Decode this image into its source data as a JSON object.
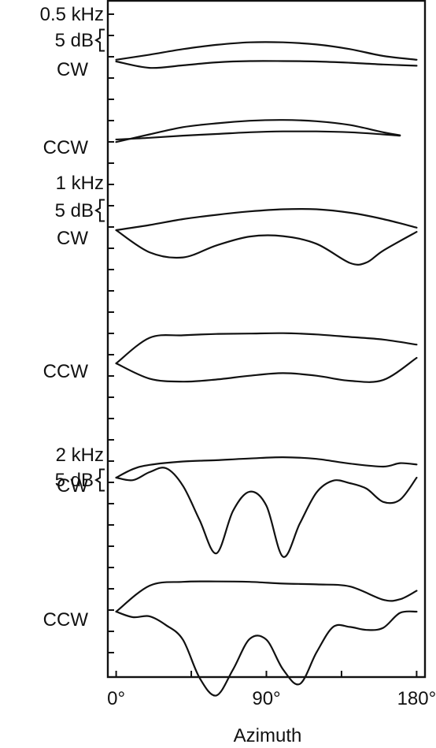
{
  "chart_data": {
    "type": "line",
    "xlabel": "Azimuth",
    "x_tick_labels": [
      "0°",
      "90°",
      "180°"
    ],
    "x_ticks": [
      0,
      90,
      180
    ],
    "xlim": [
      -5,
      185
    ],
    "scale_label": "5 dB",
    "scale_db": 5,
    "grid": false,
    "panels": [
      {
        "frequency": "0.5 kHz",
        "groups": [
          {
            "label": "CW",
            "traces": [
              {
                "x": [
                  0,
                  20,
                  40,
                  60,
                  80,
                  100,
                  120,
                  140,
                  160,
                  180
                ],
                "y": [
                  0.4,
                  1.6,
                  2.9,
                  3.9,
                  4.5,
                  4.5,
                  4.0,
                  2.9,
                  1.3,
                  0.4
                ]
              },
              {
                "x": [
                  0,
                  20,
                  40,
                  60,
                  80,
                  100,
                  120,
                  140,
                  160,
                  180
                ],
                "y": [
                  0,
                  -1.5,
                  -0.9,
                  -0.2,
                  0.1,
                  0.1,
                  0.0,
                  -0.3,
                  -0.7,
                  -1.0
                ]
              }
            ]
          },
          {
            "label": "CCW",
            "traces": [
              {
                "x": [
                  0,
                  20,
                  40,
                  60,
                  80,
                  100,
                  120,
                  140,
                  160,
                  170
                ],
                "y": [
                  -0.6,
                  1.2,
                  2.9,
                  3.8,
                  4.4,
                  4.6,
                  4.3,
                  3.4,
                  1.7,
                  1.0
                ]
              },
              {
                "x": [
                  0,
                  20,
                  40,
                  60,
                  80,
                  100,
                  120,
                  140,
                  160,
                  170
                ],
                "y": [
                  0,
                  0.4,
                  0.9,
                  1.3,
                  1.7,
                  1.9,
                  1.9,
                  1.7,
                  1.2,
                  0.9
                ]
              }
            ]
          }
        ]
      },
      {
        "frequency": "1 kHz",
        "groups": [
          {
            "label": "CW",
            "traces": [
              {
                "x": [
                  0,
                  20,
                  40,
                  60,
                  80,
                  100,
                  120,
                  140,
                  160,
                  180
                ],
                "y": [
                  0,
                  1.2,
                  2.6,
                  3.6,
                  4.4,
                  4.9,
                  4.9,
                  4.1,
                  2.6,
                  0.6
                ]
              },
              {
                "x": [
                  0,
                  20,
                  40,
                  60,
                  80,
                  100,
                  120,
                  140,
                  150,
                  160,
                  180
                ],
                "y": [
                  0,
                  -5.2,
                  -6.4,
                  -3.6,
                  -1.5,
                  -1.4,
                  -3.2,
                  -7.7,
                  -7.6,
                  -4.8,
                  -0.4
                ]
              }
            ]
          },
          {
            "label": "CCW",
            "traces": [
              {
                "x": [
                  0,
                  20,
                  40,
                  60,
                  80,
                  100,
                  120,
                  140,
                  160,
                  180
                ],
                "y": [
                  0,
                  6.0,
                  6.6,
                  6.9,
                  7.0,
                  7.1,
                  6.8,
                  6.2,
                  5.6,
                  4.4
                ]
              },
              {
                "x": [
                  0,
                  20,
                  40,
                  60,
                  80,
                  100,
                  120,
                  140,
                  160,
                  180
                ],
                "y": [
                  0,
                  -3.6,
                  -4.3,
                  -3.8,
                  -2.9,
                  -2.3,
                  -2.9,
                  -4.1,
                  -3.9,
                  1.3
                ]
              }
            ]
          }
        ]
      },
      {
        "frequency": "2 kHz",
        "groups": [
          {
            "label": "CW",
            "traces": [
              {
                "x": [
                  0,
                  10,
                  20,
                  40,
                  60,
                  80,
                  100,
                  120,
                  140,
                  160,
                  170,
                  180
                ],
                "y": [
                  0,
                  2.0,
                  3.0,
                  3.8,
                  4.1,
                  4.5,
                  4.8,
                  4.4,
                  3.3,
                  2.6,
                  3.4,
                  3.1
                ]
              },
              {
                "x": [
                  0,
                  10,
                  20,
                  30,
                  40,
                  50,
                  60,
                  70,
                  80,
                  90,
                  100,
                  110,
                  120,
                  130,
                  140,
                  150,
                  160,
                  170,
                  180
                ],
                "y": [
                  0,
                  -0.6,
                  1.3,
                  2.2,
                  -1.9,
                  -10,
                  -17.8,
                  -7.8,
                  -3.3,
                  -6.6,
                  -18.6,
                  -10.8,
                  -3.5,
                  -0.7,
                  -1.3,
                  -2.6,
                  -5.7,
                  -5.2,
                  0
                ]
              }
            ]
          },
          {
            "label": "CCW",
            "traces": [
              {
                "x": [
                  0,
                  20,
                  40,
                  60,
                  80,
                  100,
                  120,
                  140,
                  160,
                  170,
                  180
                ],
                "y": [
                  0,
                  6.1,
                  7.0,
                  7.1,
                  7.0,
                  6.6,
                  6.4,
                  5.9,
                  2.8,
                  2.9,
                  4.9
                ]
              },
              {
                "x": [
                  0,
                  10,
                  20,
                  30,
                  40,
                  50,
                  60,
                  70,
                  80,
                  90,
                  100,
                  110,
                  120,
                  130,
                  140,
                  150,
                  160,
                  170,
                  180
                ],
                "y": [
                  0,
                  -1.3,
                  -1.1,
                  -3.2,
                  -6.6,
                  -15.6,
                  -19.7,
                  -13.6,
                  -6.4,
                  -6.6,
                  -13.6,
                  -17.0,
                  -9.6,
                  -3.6,
                  -3.6,
                  -4.3,
                  -3.8,
                  -0.3,
                  0
                ]
              }
            ]
          }
        ]
      }
    ]
  }
}
